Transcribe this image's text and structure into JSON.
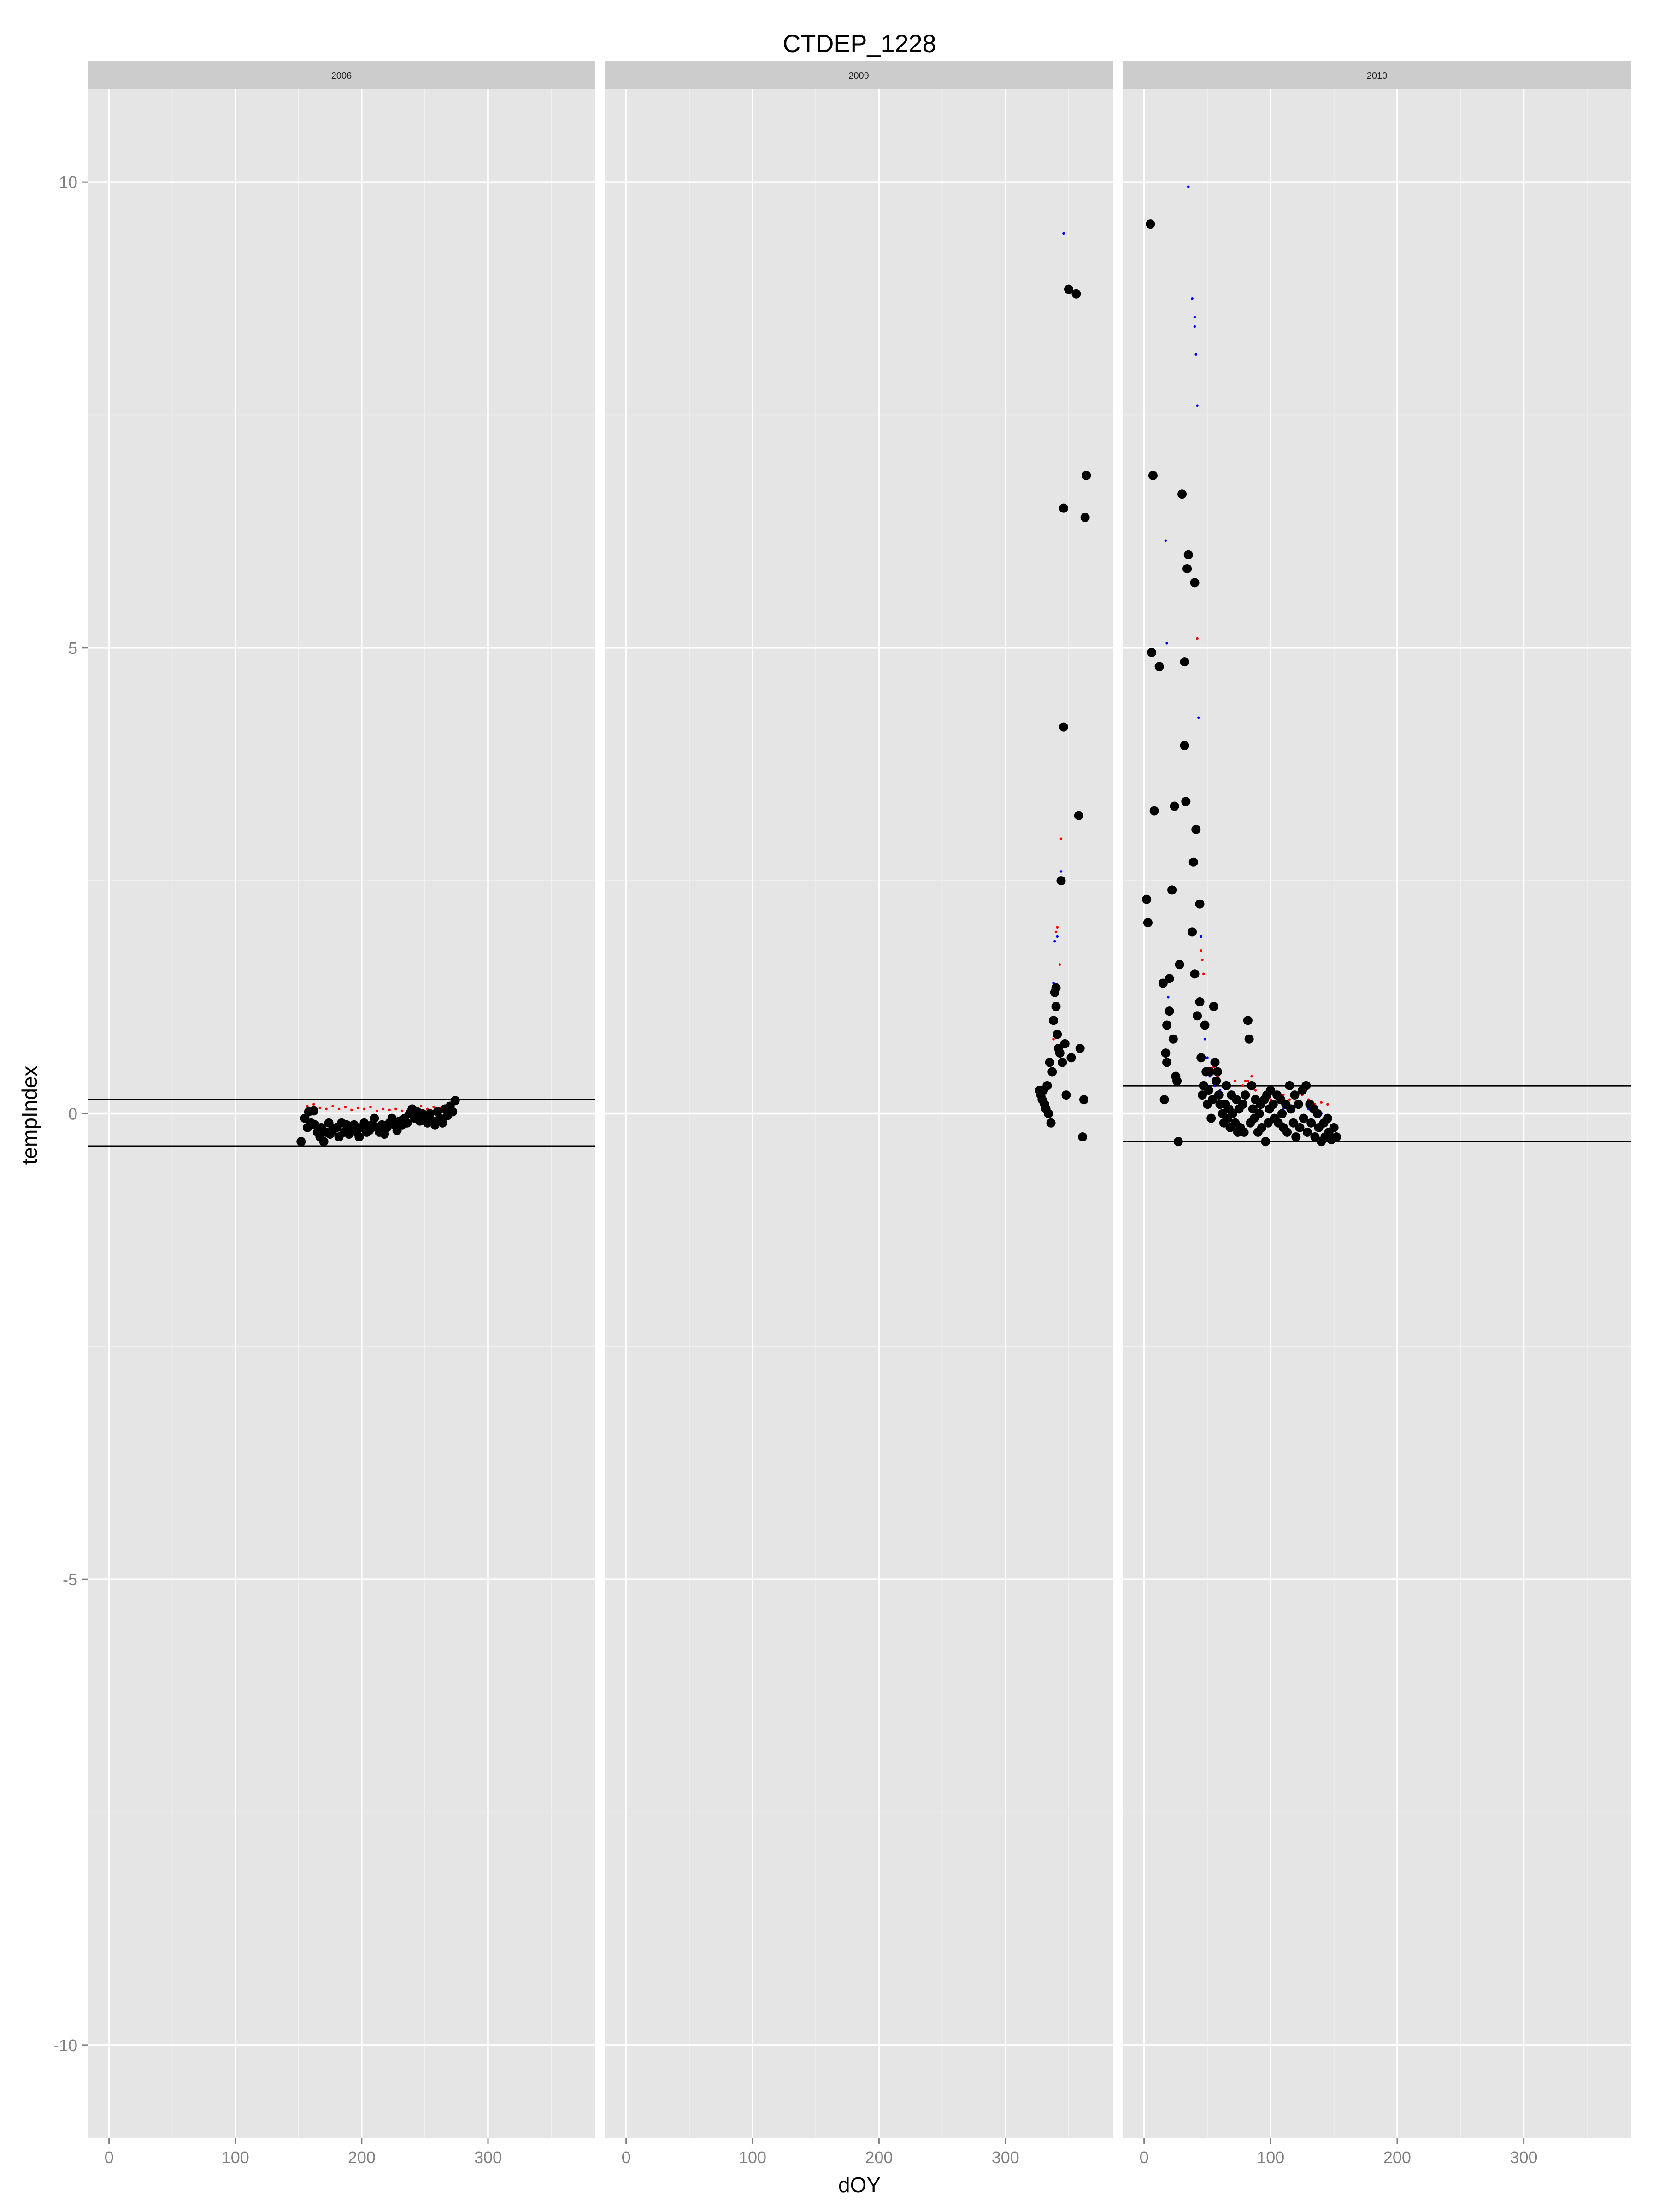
{
  "chart_data": {
    "type": "scatter",
    "title": "CTDEP_1228",
    "xlabel": "dOY",
    "ylabel": "tempIndex",
    "xlim": [
      -17,
      385
    ],
    "ylim": [
      -11,
      11
    ],
    "x_ticks": [
      0,
      100,
      200,
      300
    ],
    "y_ticks": [
      -10,
      -5,
      0,
      5,
      10
    ],
    "grid": true,
    "legend": "none",
    "colors": {
      "panel_bg": "#e5e5e5",
      "strip_bg": "#cccccc",
      "grid": "#ffffff",
      "points": "#000000",
      "red_series": "#ff0000",
      "blue_series": "#0000ff",
      "hlines": "#000000"
    },
    "facets": [
      {
        "label": "2006",
        "hlines": [
          0.15,
          -0.35
        ],
        "points": [
          [
            152,
            -0.3
          ],
          [
            155,
            -0.05
          ],
          [
            157,
            -0.15
          ],
          [
            158,
            0.02
          ],
          [
            160,
            -0.1
          ],
          [
            162,
            0.03
          ],
          [
            163,
            -0.12
          ],
          [
            165,
            -0.2
          ],
          [
            167,
            -0.25
          ],
          [
            168,
            -0.15
          ],
          [
            170,
            -0.3
          ],
          [
            172,
            -0.2
          ],
          [
            174,
            -0.1
          ],
          [
            175,
            -0.22
          ],
          [
            177,
            -0.18
          ],
          [
            180,
            -0.15
          ],
          [
            182,
            -0.25
          ],
          [
            184,
            -0.1
          ],
          [
            186,
            -0.2
          ],
          [
            188,
            -0.12
          ],
          [
            190,
            -0.22
          ],
          [
            192,
            -0.18
          ],
          [
            194,
            -0.12
          ],
          [
            196,
            -0.2
          ],
          [
            198,
            -0.25
          ],
          [
            200,
            -0.15
          ],
          [
            202,
            -0.1
          ],
          [
            204,
            -0.2
          ],
          [
            206,
            -0.18
          ],
          [
            208,
            -0.12
          ],
          [
            210,
            -0.05
          ],
          [
            212,
            -0.15
          ],
          [
            214,
            -0.2
          ],
          [
            216,
            -0.12
          ],
          [
            218,
            -0.22
          ],
          [
            220,
            -0.15
          ],
          [
            222,
            -0.1
          ],
          [
            224,
            -0.05
          ],
          [
            226,
            -0.12
          ],
          [
            228,
            -0.18
          ],
          [
            230,
            -0.08
          ],
          [
            232,
            -0.12
          ],
          [
            234,
            -0.05
          ],
          [
            236,
            -0.1
          ],
          [
            238,
            0.0
          ],
          [
            240,
            0.05
          ],
          [
            242,
            -0.05
          ],
          [
            244,
            0.02
          ],
          [
            246,
            -0.08
          ],
          [
            248,
            0.0
          ],
          [
            250,
            -0.05
          ],
          [
            252,
            -0.1
          ],
          [
            254,
            0.0
          ],
          [
            256,
            -0.08
          ],
          [
            258,
            -0.12
          ],
          [
            260,
            0.02
          ],
          [
            262,
            -0.05
          ],
          [
            264,
            -0.1
          ],
          [
            266,
            0.05
          ],
          [
            268,
            -0.02
          ],
          [
            270,
            0.08
          ],
          [
            272,
            0.02
          ],
          [
            274,
            0.14
          ]
        ],
        "red": [
          [
            157,
            0.08
          ],
          [
            162,
            0.1
          ],
          [
            167,
            0.06
          ],
          [
            172,
            0.05
          ],
          [
            177,
            0.08
          ],
          [
            182,
            0.05
          ],
          [
            187,
            0.07
          ],
          [
            192,
            0.04
          ],
          [
            197,
            0.06
          ],
          [
            202,
            0.05
          ],
          [
            207,
            0.07
          ],
          [
            212,
            0.03
          ],
          [
            217,
            0.05
          ],
          [
            222,
            0.04
          ],
          [
            227,
            0.05
          ],
          [
            232,
            0.03
          ],
          [
            237,
            0.05
          ],
          [
            242,
            0.06
          ],
          [
            247,
            0.08
          ],
          [
            252,
            0.05
          ],
          [
            257,
            0.07
          ],
          [
            262,
            0.06
          ],
          [
            267,
            0.08
          ],
          [
            272,
            0.1
          ]
        ],
        "blue": []
      },
      {
        "label": "2009",
        "hlines": [],
        "points": [
          [
            327,
            0.25
          ],
          [
            328,
            0.2
          ],
          [
            329,
            0.15
          ],
          [
            330,
            0.25
          ],
          [
            331,
            0.1
          ],
          [
            332,
            0.05
          ],
          [
            333,
            0.3
          ],
          [
            334,
            0.0
          ],
          [
            335,
            0.55
          ],
          [
            336,
            -0.1
          ],
          [
            337,
            0.45
          ],
          [
            338,
            1.0
          ],
          [
            339,
            1.3
          ],
          [
            340,
            1.35
          ],
          [
            340,
            1.15
          ],
          [
            341,
            0.85
          ],
          [
            342,
            0.7
          ],
          [
            343,
            0.65
          ],
          [
            344,
            2.5
          ],
          [
            345,
            0.55
          ],
          [
            346,
            4.15
          ],
          [
            346,
            6.5
          ],
          [
            347,
            0.75
          ],
          [
            348,
            0.2
          ],
          [
            350,
            8.85
          ],
          [
            352,
            0.6
          ],
          [
            356,
            8.8
          ],
          [
            358,
            3.2
          ],
          [
            359,
            0.7
          ],
          [
            361,
            -0.25
          ],
          [
            362,
            0.15
          ],
          [
            363,
            6.4
          ],
          [
            364,
            6.85
          ]
        ],
        "red": [
          [
            338,
            0.8
          ],
          [
            340,
            1.95
          ],
          [
            341,
            2.0
          ],
          [
            343,
            1.6
          ],
          [
            344,
            2.95
          ]
        ],
        "blue": [
          [
            338,
            1.4
          ],
          [
            339,
            1.85
          ],
          [
            341,
            1.9
          ],
          [
            344,
            2.6
          ],
          [
            346,
            9.45
          ]
        ]
      },
      {
        "label": "2010",
        "hlines": [
          0.3,
          -0.3
        ],
        "points": [
          [
            2,
            2.3
          ],
          [
            3,
            2.05
          ],
          [
            5,
            9.55
          ],
          [
            6,
            4.95
          ],
          [
            7,
            6.85
          ],
          [
            8,
            3.25
          ],
          [
            12,
            4.8
          ],
          [
            15,
            1.4
          ],
          [
            16,
            0.15
          ],
          [
            17,
            0.65
          ],
          [
            18,
            0.95
          ],
          [
            18,
            0.55
          ],
          [
            20,
            1.1
          ],
          [
            20,
            1.45
          ],
          [
            22,
            2.4
          ],
          [
            23,
            0.8
          ],
          [
            24,
            3.3
          ],
          [
            25,
            0.4
          ],
          [
            26,
            0.35
          ],
          [
            27,
            -0.3
          ],
          [
            28,
            1.6
          ],
          [
            30,
            6.65
          ],
          [
            32,
            4.85
          ],
          [
            32,
            3.95
          ],
          [
            33,
            3.35
          ],
          [
            34,
            5.85
          ],
          [
            35,
            6.0
          ],
          [
            38,
            1.95
          ],
          [
            39,
            2.7
          ],
          [
            40,
            1.5
          ],
          [
            40,
            5.7
          ],
          [
            41,
            3.05
          ],
          [
            42,
            1.05
          ],
          [
            44,
            1.2
          ],
          [
            44,
            2.25
          ],
          [
            45,
            0.6
          ],
          [
            46,
            0.2
          ],
          [
            47,
            0.3
          ],
          [
            48,
            0.95
          ],
          [
            49,
            0.45
          ],
          [
            50,
            0.1
          ],
          [
            51,
            0.25
          ],
          [
            52,
            0.45
          ],
          [
            53,
            -0.05
          ],
          [
            54,
            0.15
          ],
          [
            55,
            1.15
          ],
          [
            56,
            0.55
          ],
          [
            57,
            0.35
          ],
          [
            58,
            0.45
          ],
          [
            59,
            0.2
          ],
          [
            60,
            0.1
          ],
          [
            62,
            0.0
          ],
          [
            63,
            -0.1
          ],
          [
            64,
            0.1
          ],
          [
            65,
            0.3
          ],
          [
            66,
            -0.05
          ],
          [
            67,
            0.05
          ],
          [
            68,
            -0.15
          ],
          [
            69,
            0.2
          ],
          [
            70,
            0.0
          ],
          [
            72,
            -0.1
          ],
          [
            73,
            0.15
          ],
          [
            74,
            -0.2
          ],
          [
            75,
            0.05
          ],
          [
            76,
            -0.15
          ],
          [
            78,
            0.1
          ],
          [
            79,
            -0.2
          ],
          [
            80,
            0.2
          ],
          [
            82,
            1.0
          ],
          [
            83,
            0.8
          ],
          [
            84,
            -0.1
          ],
          [
            85,
            0.3
          ],
          [
            86,
            0.05
          ],
          [
            87,
            -0.05
          ],
          [
            88,
            0.15
          ],
          [
            90,
            -0.2
          ],
          [
            91,
            0.0
          ],
          [
            92,
            0.1
          ],
          [
            93,
            -0.15
          ],
          [
            95,
            0.15
          ],
          [
            96,
            -0.3
          ],
          [
            97,
            0.2
          ],
          [
            98,
            -0.1
          ],
          [
            99,
            0.05
          ],
          [
            100,
            0.25
          ],
          [
            102,
            0.1
          ],
          [
            103,
            -0.05
          ],
          [
            105,
            0.2
          ],
          [
            106,
            -0.1
          ],
          [
            108,
            0.15
          ],
          [
            109,
            0.0
          ],
          [
            110,
            -0.15
          ],
          [
            112,
            0.1
          ],
          [
            113,
            -0.2
          ],
          [
            115,
            0.3
          ],
          [
            116,
            0.05
          ],
          [
            118,
            -0.1
          ],
          [
            119,
            0.2
          ],
          [
            120,
            -0.25
          ],
          [
            122,
            0.1
          ],
          [
            123,
            -0.15
          ],
          [
            125,
            0.25
          ],
          [
            126,
            -0.05
          ],
          [
            128,
            0.3
          ],
          [
            129,
            -0.2
          ],
          [
            131,
            0.1
          ],
          [
            132,
            -0.1
          ],
          [
            134,
            0.05
          ],
          [
            135,
            -0.25
          ],
          [
            137,
            0.0
          ],
          [
            138,
            -0.15
          ],
          [
            140,
            -0.3
          ],
          [
            142,
            -0.1
          ],
          [
            143,
            -0.25
          ],
          [
            145,
            -0.05
          ],
          [
            146,
            -0.2
          ],
          [
            148,
            -0.28
          ],
          [
            150,
            -0.15
          ],
          [
            152,
            -0.25
          ]
        ],
        "red": [
          [
            42,
            5.1
          ],
          [
            45,
            1.75
          ],
          [
            46,
            1.65
          ],
          [
            47,
            1.5
          ],
          [
            49,
            0.95
          ],
          [
            53,
            0.45
          ],
          [
            55,
            0.5
          ],
          [
            58,
            0.4
          ],
          [
            60,
            0.35
          ],
          [
            65,
            0.3
          ],
          [
            72,
            0.35
          ],
          [
            78,
            0.3
          ],
          [
            80,
            0.35
          ],
          [
            82,
            0.35
          ],
          [
            85,
            0.4
          ],
          [
            88,
            0.25
          ],
          [
            95,
            0.2
          ],
          [
            100,
            0.15
          ],
          [
            105,
            0.2
          ],
          [
            110,
            0.2
          ],
          [
            115,
            0.15
          ],
          [
            120,
            0.2
          ],
          [
            125,
            0.2
          ],
          [
            130,
            0.15
          ],
          [
            135,
            0.1
          ],
          [
            140,
            0.12
          ],
          [
            145,
            0.1
          ]
        ],
        "blue": [
          [
            17,
            6.15
          ],
          [
            18,
            5.05
          ],
          [
            19,
            1.25
          ],
          [
            35,
            9.95
          ],
          [
            38,
            8.75
          ],
          [
            40,
            8.55
          ],
          [
            40,
            8.45
          ],
          [
            41,
            8.15
          ],
          [
            42,
            7.6
          ],
          [
            43,
            4.25
          ],
          [
            45,
            1.9
          ],
          [
            48,
            0.8
          ],
          [
            50,
            0.6
          ],
          [
            52,
            0.4
          ],
          [
            56,
            0.3
          ],
          [
            60,
            0.25
          ],
          [
            70,
            0.15
          ],
          [
            80,
            0.2
          ],
          [
            90,
            0.1
          ],
          [
            100,
            0.1
          ],
          [
            110,
            0.05
          ],
          [
            120,
            0.1
          ],
          [
            130,
            0.05
          ],
          [
            140,
            0.0
          ]
        ]
      }
    ]
  }
}
